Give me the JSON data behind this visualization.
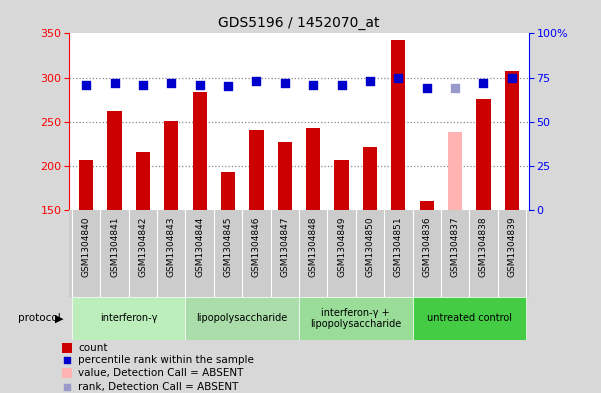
{
  "title": "GDS5196 / 1452070_at",
  "samples": [
    "GSM1304840",
    "GSM1304841",
    "GSM1304842",
    "GSM1304843",
    "GSM1304844",
    "GSM1304845",
    "GSM1304846",
    "GSM1304847",
    "GSM1304848",
    "GSM1304849",
    "GSM1304850",
    "GSM1304851",
    "GSM1304836",
    "GSM1304837",
    "GSM1304838",
    "GSM1304839"
  ],
  "counts": [
    207,
    262,
    216,
    251,
    284,
    193,
    241,
    227,
    243,
    207,
    221,
    343,
    160,
    238,
    276,
    307
  ],
  "ranks": [
    71,
    72,
    71,
    72,
    71,
    70,
    73,
    72,
    71,
    71,
    73,
    75,
    69,
    69,
    72,
    75
  ],
  "absent_mask": [
    false,
    false,
    false,
    false,
    false,
    false,
    false,
    false,
    false,
    false,
    false,
    false,
    false,
    true,
    false,
    false
  ],
  "absent_rank_mask": [
    false,
    false,
    false,
    false,
    false,
    false,
    false,
    false,
    false,
    false,
    false,
    false,
    false,
    true,
    false,
    false
  ],
  "groups": [
    {
      "label": "interferon-γ",
      "start": 0,
      "end": 4,
      "color": "#cceecc"
    },
    {
      "label": "lipopolysaccharide",
      "start": 4,
      "end": 8,
      "color": "#aaddaa"
    },
    {
      "label": "interferon-γ +\nlipopolysaccharide",
      "start": 8,
      "end": 12,
      "color": "#99dd99"
    },
    {
      "label": "untreated control",
      "start": 12,
      "end": 16,
      "color": "#44cc44"
    }
  ],
  "ylim_left": [
    150,
    350
  ],
  "ylim_right": [
    0,
    100
  ],
  "yticks_left": [
    150,
    200,
    250,
    300,
    350
  ],
  "yticks_right": [
    0,
    25,
    50,
    75,
    100
  ],
  "ytick_labels_right": [
    "0",
    "25",
    "50",
    "75",
    "100%"
  ],
  "bar_color": "#cc0000",
  "absent_bar_color": "#ffb3b3",
  "dot_color": "#0000cc",
  "absent_dot_color": "#9999cc",
  "dot_size": 35,
  "bar_width": 0.5,
  "grid_color": "#888888",
  "bg_color": "#d8d8d8",
  "plot_bg_color": "#ffffff",
  "label_bg_color": "#cccccc",
  "legend_items": [
    {
      "label": "count",
      "color": "#cc0000",
      "type": "bar"
    },
    {
      "label": "percentile rank within the sample",
      "color": "#0000cc",
      "type": "dot"
    },
    {
      "label": "value, Detection Call = ABSENT",
      "color": "#ffb3b3",
      "type": "bar"
    },
    {
      "label": "rank, Detection Call = ABSENT",
      "color": "#9999cc",
      "type": "dot"
    }
  ]
}
